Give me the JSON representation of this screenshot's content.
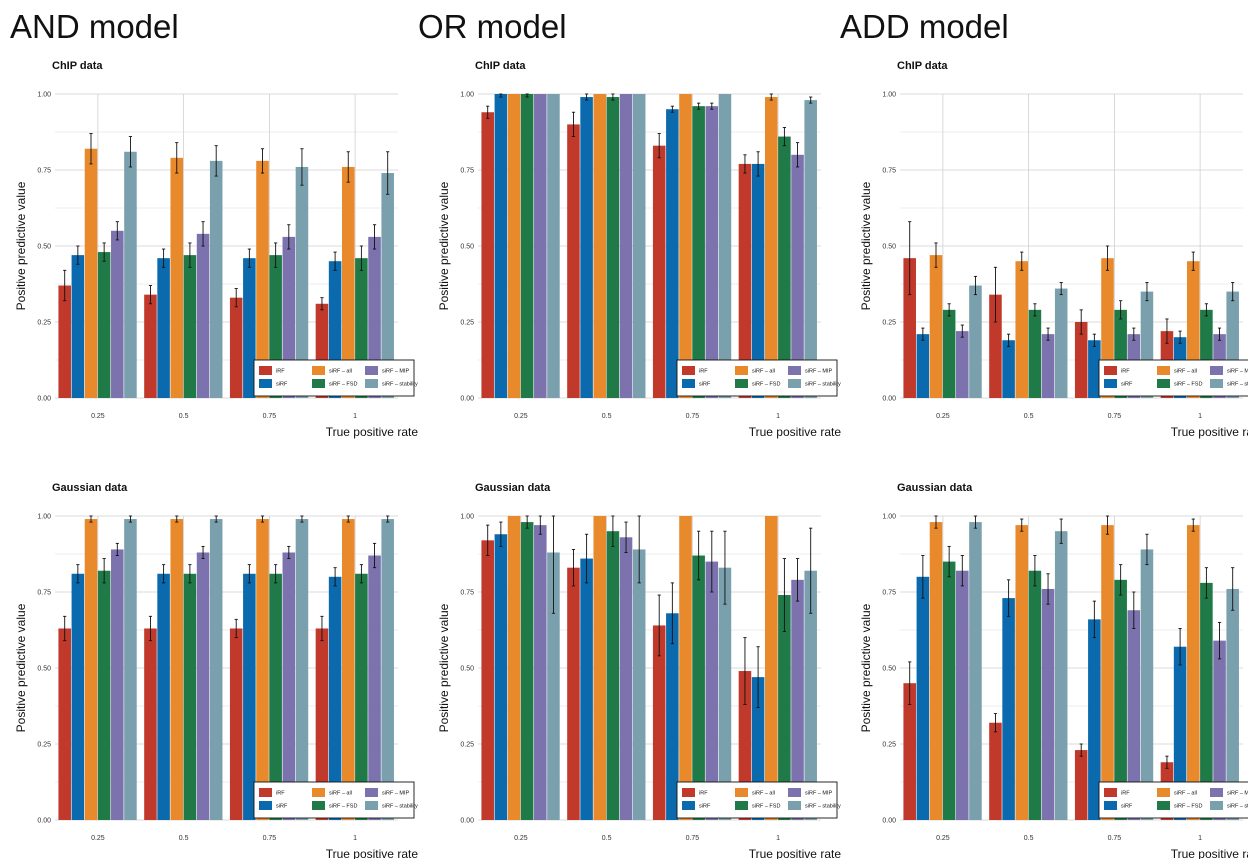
{
  "model_titles": [
    "AND model",
    "OR model",
    "ADD model"
  ],
  "colors": {
    "iRF": "#c0392b",
    "siRF": "#0b6aad",
    "siRF – all": "#e8892b",
    "siRF – FSD": "#1f7a47",
    "siRF – MIP": "#7b72ae",
    "siRF – stability": "#7aa0ae"
  },
  "chart_data": [
    {
      "type": "bar",
      "model": "AND model",
      "title": "ChIP data",
      "xlabel": "True positive rate",
      "ylabel": "Positive predictive value",
      "categories": [
        "0.25",
        "0.5",
        "0.75",
        "1"
      ],
      "yticks": [
        "0.00",
        "0.25",
        "0.50",
        "0.75",
        "1.00"
      ],
      "ylim": [
        0,
        1
      ],
      "legend_position": "bottom-right",
      "series": [
        {
          "name": "iRF",
          "values": [
            0.37,
            0.34,
            0.33,
            0.31
          ],
          "err": [
            0.05,
            0.03,
            0.03,
            0.02
          ]
        },
        {
          "name": "siRF",
          "values": [
            0.47,
            0.46,
            0.46,
            0.45
          ],
          "err": [
            0.03,
            0.03,
            0.03,
            0.03
          ]
        },
        {
          "name": "siRF – all",
          "values": [
            0.82,
            0.79,
            0.78,
            0.76
          ],
          "err": [
            0.05,
            0.05,
            0.04,
            0.05
          ]
        },
        {
          "name": "siRF – FSD",
          "values": [
            0.48,
            0.47,
            0.47,
            0.46
          ],
          "err": [
            0.03,
            0.04,
            0.04,
            0.04
          ]
        },
        {
          "name": "siRF – MIP",
          "values": [
            0.55,
            0.54,
            0.53,
            0.53
          ],
          "err": [
            0.03,
            0.04,
            0.04,
            0.04
          ]
        },
        {
          "name": "siRF – stability",
          "values": [
            0.81,
            0.78,
            0.76,
            0.74
          ],
          "err": [
            0.05,
            0.05,
            0.06,
            0.07
          ]
        }
      ]
    },
    {
      "type": "bar",
      "model": "OR model",
      "title": "ChIP data",
      "xlabel": "True positive rate",
      "ylabel": "Positive predictive value",
      "categories": [
        "0.25",
        "0.5",
        "0.75",
        "1"
      ],
      "yticks": [
        "0.00",
        "0.25",
        "0.50",
        "0.75",
        "1.00"
      ],
      "ylim": [
        0,
        1
      ],
      "legend_position": "bottom-right",
      "series": [
        {
          "name": "iRF",
          "values": [
            0.94,
            0.9,
            0.83,
            0.77
          ],
          "err": [
            0.02,
            0.04,
            0.04,
            0.03
          ]
        },
        {
          "name": "siRF",
          "values": [
            1.0,
            0.99,
            0.95,
            0.77
          ],
          "err": [
            0.01,
            0.01,
            0.01,
            0.04
          ]
        },
        {
          "name": "siRF – all",
          "values": [
            1.0,
            1.0,
            1.0,
            0.99
          ],
          "err": [
            0.0,
            0.0,
            0.0,
            0.01
          ]
        },
        {
          "name": "siRF – FSD",
          "values": [
            1.0,
            0.99,
            0.96,
            0.86
          ],
          "err": [
            0.01,
            0.01,
            0.01,
            0.03
          ]
        },
        {
          "name": "siRF – MIP",
          "values": [
            1.0,
            1.0,
            0.96,
            0.8
          ],
          "err": [
            0.0,
            0.0,
            0.01,
            0.04
          ]
        },
        {
          "name": "siRF – stability",
          "values": [
            1.0,
            1.0,
            1.0,
            0.98
          ],
          "err": [
            0.0,
            0.0,
            0.0,
            0.01
          ]
        }
      ]
    },
    {
      "type": "bar",
      "model": "ADD model",
      "title": "ChIP data",
      "xlabel": "True positive rate",
      "ylabel": "Positive predictive value",
      "categories": [
        "0.25",
        "0.5",
        "0.75",
        "1"
      ],
      "yticks": [
        "0.00",
        "0.25",
        "0.50",
        "0.75",
        "1.00"
      ],
      "ylim": [
        0,
        1
      ],
      "legend_position": "bottom-right",
      "series": [
        {
          "name": "iRF",
          "values": [
            0.46,
            0.34,
            0.25,
            0.22
          ],
          "err": [
            0.12,
            0.09,
            0.04,
            0.04
          ]
        },
        {
          "name": "siRF",
          "values": [
            0.21,
            0.19,
            0.19,
            0.2
          ],
          "err": [
            0.02,
            0.02,
            0.02,
            0.02
          ]
        },
        {
          "name": "siRF – all",
          "values": [
            0.47,
            0.45,
            0.46,
            0.45
          ],
          "err": [
            0.04,
            0.03,
            0.04,
            0.03
          ]
        },
        {
          "name": "siRF – FSD",
          "values": [
            0.29,
            0.29,
            0.29,
            0.29
          ],
          "err": [
            0.02,
            0.02,
            0.03,
            0.02
          ]
        },
        {
          "name": "siRF – MIP",
          "values": [
            0.22,
            0.21,
            0.21,
            0.21
          ],
          "err": [
            0.02,
            0.02,
            0.02,
            0.02
          ]
        },
        {
          "name": "siRF – stability",
          "values": [
            0.37,
            0.36,
            0.35,
            0.35
          ],
          "err": [
            0.03,
            0.02,
            0.03,
            0.03
          ]
        }
      ]
    },
    {
      "type": "bar",
      "model": "AND model",
      "title": "Gaussian data",
      "xlabel": "True positive rate",
      "ylabel": "Positive predictive value",
      "categories": [
        "0.25",
        "0.5",
        "0.75",
        "1"
      ],
      "yticks": [
        "0.00",
        "0.25",
        "0.50",
        "0.75",
        "1.00"
      ],
      "ylim": [
        0,
        1
      ],
      "legend_position": "bottom-right",
      "series": [
        {
          "name": "iRF",
          "values": [
            0.63,
            0.63,
            0.63,
            0.63
          ],
          "err": [
            0.04,
            0.04,
            0.03,
            0.04
          ]
        },
        {
          "name": "siRF",
          "values": [
            0.81,
            0.81,
            0.81,
            0.8
          ],
          "err": [
            0.03,
            0.03,
            0.03,
            0.03
          ]
        },
        {
          "name": "siRF – all",
          "values": [
            0.99,
            0.99,
            0.99,
            0.99
          ],
          "err": [
            0.01,
            0.01,
            0.01,
            0.01
          ]
        },
        {
          "name": "siRF – FSD",
          "values": [
            0.82,
            0.81,
            0.81,
            0.81
          ],
          "err": [
            0.04,
            0.03,
            0.03,
            0.03
          ]
        },
        {
          "name": "siRF – MIP",
          "values": [
            0.89,
            0.88,
            0.88,
            0.87
          ],
          "err": [
            0.02,
            0.02,
            0.02,
            0.04
          ]
        },
        {
          "name": "siRF – stability",
          "values": [
            0.99,
            0.99,
            0.99,
            0.99
          ],
          "err": [
            0.01,
            0.01,
            0.01,
            0.01
          ]
        }
      ]
    },
    {
      "type": "bar",
      "model": "OR model",
      "title": "Gaussian data",
      "xlabel": "True positive rate",
      "ylabel": "Positive predictive value",
      "categories": [
        "0.25",
        "0.5",
        "0.75",
        "1"
      ],
      "yticks": [
        "0.00",
        "0.25",
        "0.50",
        "0.75",
        "1.00"
      ],
      "ylim": [
        0,
        1
      ],
      "legend_position": "bottom-right",
      "series": [
        {
          "name": "iRF",
          "values": [
            0.92,
            0.83,
            0.64,
            0.49
          ],
          "err": [
            0.05,
            0.06,
            0.1,
            0.11
          ]
        },
        {
          "name": "siRF",
          "values": [
            0.94,
            0.86,
            0.68,
            0.47
          ],
          "err": [
            0.04,
            0.08,
            0.1,
            0.1
          ]
        },
        {
          "name": "siRF – all",
          "values": [
            1.0,
            1.0,
            1.0,
            1.0
          ],
          "err": [
            0.0,
            0.0,
            0.0,
            0.0
          ]
        },
        {
          "name": "siRF – FSD",
          "values": [
            0.98,
            0.95,
            0.87,
            0.74
          ],
          "err": [
            0.02,
            0.05,
            0.08,
            0.12
          ]
        },
        {
          "name": "siRF – MIP",
          "values": [
            0.97,
            0.93,
            0.85,
            0.79
          ],
          "err": [
            0.03,
            0.05,
            0.1,
            0.07
          ]
        },
        {
          "name": "siRF – stability",
          "values": [
            0.88,
            0.89,
            0.83,
            0.82
          ],
          "err": [
            0.2,
            0.11,
            0.12,
            0.14
          ]
        }
      ]
    },
    {
      "type": "bar",
      "model": "ADD model",
      "title": "Gaussian data",
      "xlabel": "True positive rate",
      "ylabel": "Positive predictive value",
      "categories": [
        "0.25",
        "0.5",
        "0.75",
        "1"
      ],
      "yticks": [
        "0.00",
        "0.25",
        "0.50",
        "0.75",
        "1.00"
      ],
      "ylim": [
        0,
        1
      ],
      "legend_position": "bottom-right",
      "series": [
        {
          "name": "iRF",
          "values": [
            0.45,
            0.32,
            0.23,
            0.19
          ],
          "err": [
            0.07,
            0.03,
            0.02,
            0.02
          ]
        },
        {
          "name": "siRF",
          "values": [
            0.8,
            0.73,
            0.66,
            0.57
          ],
          "err": [
            0.07,
            0.06,
            0.06,
            0.06
          ]
        },
        {
          "name": "siRF – all",
          "values": [
            0.98,
            0.97,
            0.97,
            0.97
          ],
          "err": [
            0.02,
            0.02,
            0.03,
            0.02
          ]
        },
        {
          "name": "siRF – FSD",
          "values": [
            0.85,
            0.82,
            0.79,
            0.78
          ],
          "err": [
            0.05,
            0.05,
            0.05,
            0.05
          ]
        },
        {
          "name": "siRF – MIP",
          "values": [
            0.82,
            0.76,
            0.69,
            0.59
          ],
          "err": [
            0.05,
            0.05,
            0.06,
            0.06
          ]
        },
        {
          "name": "siRF – stability",
          "values": [
            0.98,
            0.95,
            0.89,
            0.76
          ],
          "err": [
            0.02,
            0.04,
            0.05,
            0.07
          ]
        }
      ]
    }
  ]
}
